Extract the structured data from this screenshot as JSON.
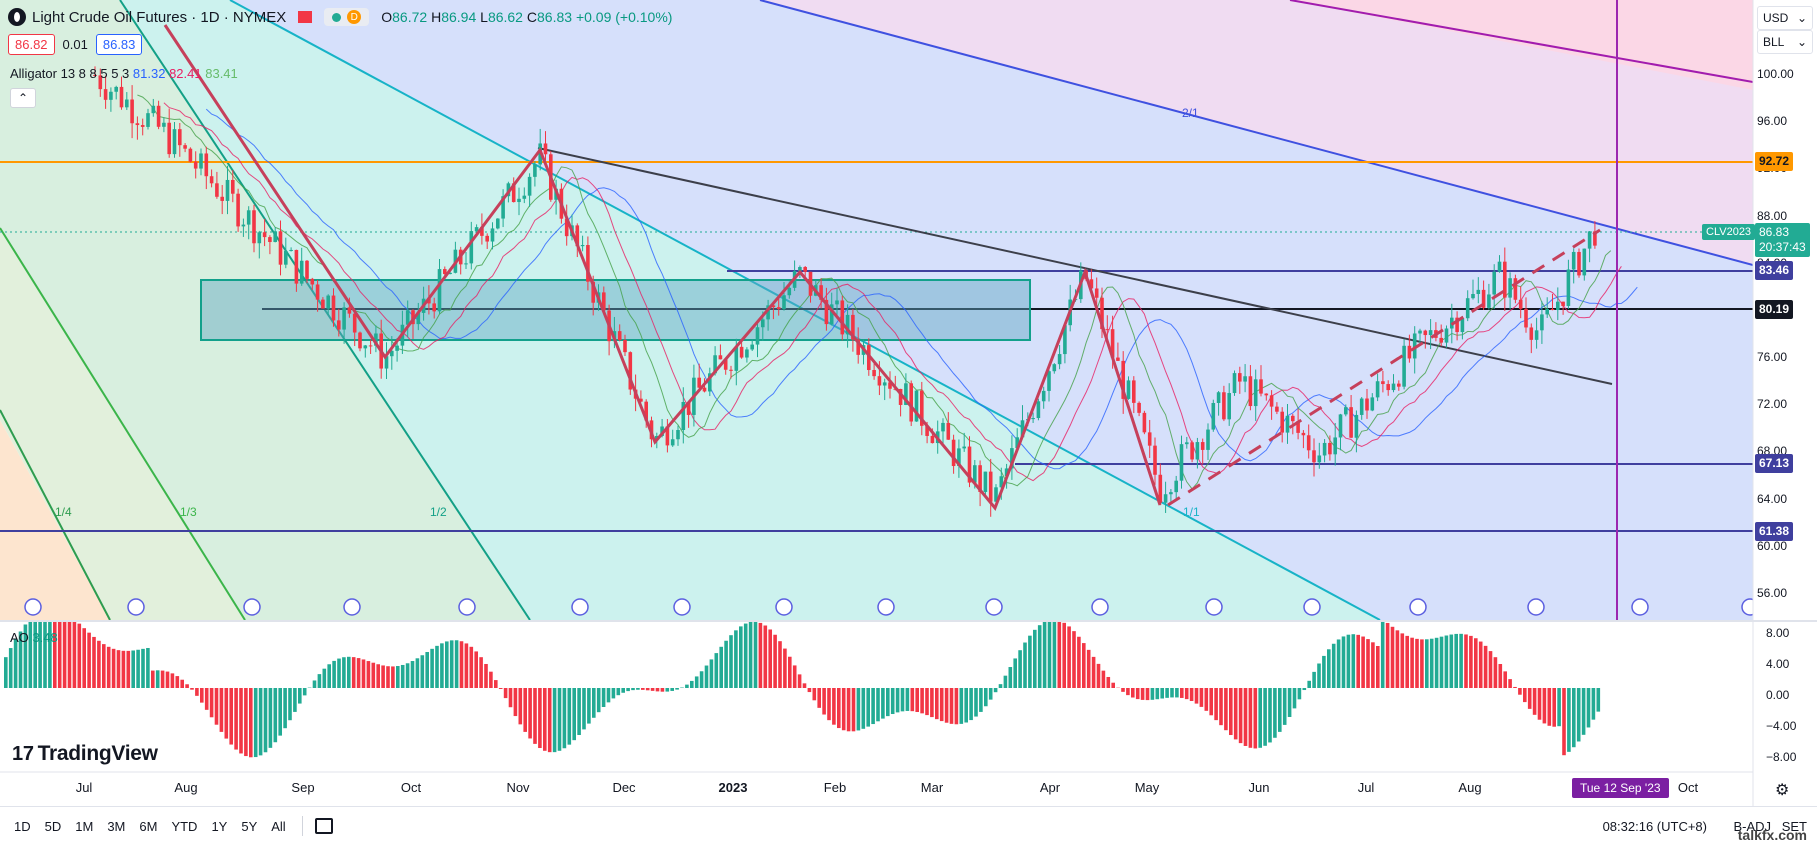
{
  "header": {
    "symbol_title": "Light Crude Oil Futures · 1D · NYMEX",
    "session_badge": "D",
    "open_label": "O",
    "open": "86.72",
    "high_label": "H",
    "high": "86.94",
    "low_label": "L",
    "low": "86.62",
    "close_label": "C",
    "close": "86.83",
    "change": "+0.09 (+0.10%)"
  },
  "price_row": {
    "bid": "86.82",
    "spread": "0.01",
    "ask": "86.83"
  },
  "alligator": {
    "label": "Alligator",
    "params": "13 8 8 5 5 3",
    "jaw": "81.32",
    "teeth": "82.41",
    "lips": "83.41"
  },
  "collapse_icon": "chevron-up-icon",
  "currency": {
    "code": "USD",
    "unit": "BLL"
  },
  "price_axis": [
    "100.00",
    "96.00",
    "92.00",
    "88.00",
    "84.00",
    "80.00",
    "76.00",
    "72.00",
    "68.00",
    "64.00",
    "60.00",
    "56.00"
  ],
  "price_tags": [
    {
      "value": "92.72",
      "color": "#ff9800",
      "text_color": "#131722"
    },
    {
      "value": "83.46",
      "color": "#3f3f9e",
      "text_color": "#ffffff"
    },
    {
      "value": "80.19",
      "color": "#131722",
      "text_color": "#ffffff"
    },
    {
      "value": "67.13",
      "color": "#3f3f9e",
      "text_color": "#ffffff"
    },
    {
      "value": "61.38",
      "color": "#3f3f9e",
      "text_color": "#ffffff"
    }
  ],
  "last_price": {
    "symbol": "CLV2023",
    "value": "86.83",
    "countdown": "20:37:43",
    "color": "#22ab94"
  },
  "fan_labels": [
    "1/4",
    "1/3",
    "1/2",
    "1/1",
    "2/1"
  ],
  "ao": {
    "label": "AO",
    "value": "3.48",
    "axis": [
      "8.00",
      "4.00",
      "0.00",
      "−4.00",
      "−8.00"
    ]
  },
  "x_axis": [
    "Jul",
    "Aug",
    "Sep",
    "Oct",
    "Nov",
    "Dec",
    "2023",
    "Feb",
    "Mar",
    "Apr",
    "May",
    "Jun",
    "Jul",
    "Aug",
    "Oct"
  ],
  "x_selected": "Tue 12 Sep '23",
  "logo_text": "TradingView",
  "timeframes": [
    "1D",
    "5D",
    "1M",
    "3M",
    "6M",
    "YTD",
    "1Y",
    "5Y",
    "All"
  ],
  "clock": "08:32:16 (UTC+8)",
  "b_adj": "B-ADJ",
  "set_label": "SET",
  "watermark": "talkfx.com",
  "colors": {
    "up": "#22ab94",
    "down": "#f23645",
    "vline": "#9c27b0"
  }
}
